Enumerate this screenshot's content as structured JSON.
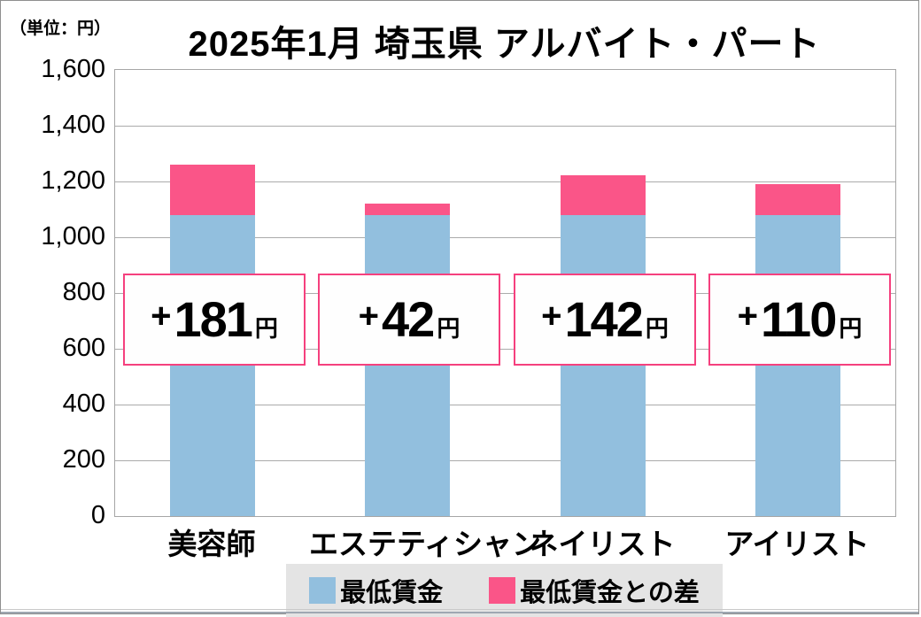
{
  "chart_data": {
    "type": "bar",
    "stacked": true,
    "title": "2025年1月 埼玉県 アルバイト・パート",
    "unit_label": "（単位：円）",
    "categories": [
      "美容師",
      "エステティシャン",
      "ネイリスト",
      "アイリスト"
    ],
    "series": [
      {
        "name": "最低賃金",
        "color": "#92BFDE",
        "values": [
          1078,
          1078,
          1078,
          1078
        ]
      },
      {
        "name": "最低賃金との差",
        "color": "#FA5588",
        "values": [
          181,
          42,
          142,
          110
        ]
      }
    ],
    "totals": [
      1259,
      1120,
      1220,
      1188
    ],
    "diff_labels": [
      {
        "plus": "+",
        "value": "181",
        "unit": "円"
      },
      {
        "plus": "+",
        "value": "42",
        "unit": "円"
      },
      {
        "plus": "+",
        "value": "142",
        "unit": "円"
      },
      {
        "plus": "+",
        "value": "110",
        "unit": "円"
      }
    ],
    "ylim": [
      0,
      1600
    ],
    "ytick_interval": 200,
    "yticks": [
      "1,600",
      "1,400",
      "1,200",
      "1,000",
      "800",
      "600",
      "400",
      "200",
      "0"
    ],
    "grid": true,
    "legend_position": "bottom",
    "colors": {
      "bar_min_wage": "#92BFDE",
      "bar_diff": "#FA5588",
      "diff_box_border": "#F5407E",
      "diff_box_bg": "#FEFEFE",
      "gridline": "#ABABAB",
      "plot_border": "#A6A6A6",
      "legend_bg": "#E4E4E4",
      "text": "#000000"
    }
  }
}
